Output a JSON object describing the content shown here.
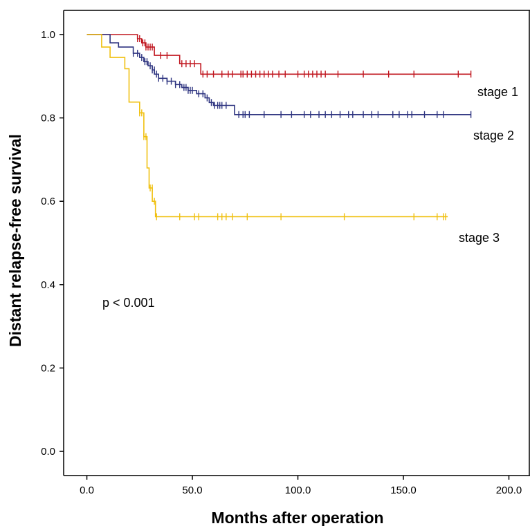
{
  "chart_data": {
    "type": "line",
    "subtype": "kaplan-meier-step",
    "title": "",
    "xlabel": "Months after operation",
    "ylabel": "Distant relapse-free survival",
    "xlim": [
      -11,
      210
    ],
    "ylim": [
      -0.058,
      1.058
    ],
    "xticks": [
      0,
      50,
      100,
      150,
      200
    ],
    "xtick_labels": [
      "0.0",
      "50.0",
      "100.0",
      "150.0",
      "200.0"
    ],
    "yticks": [
      0,
      0.2,
      0.4,
      0.6,
      0.8,
      1.0
    ],
    "ytick_labels": [
      "0.0",
      "0.2",
      "0.4",
      "0.6",
      "0.8",
      "1.0"
    ],
    "grid": false,
    "annotation": "p < 0.001",
    "series": [
      {
        "name": "stage 1",
        "color": "#c0161f",
        "steps": [
          [
            0,
            1.0
          ],
          [
            24,
            0.99
          ],
          [
            26,
            0.98
          ],
          [
            28,
            0.97
          ],
          [
            32,
            0.95
          ],
          [
            44,
            0.93
          ],
          [
            54,
            0.905
          ],
          [
            182,
            0.905
          ]
        ],
        "censored": [
          [
            24,
            0.99
          ],
          [
            25,
            0.99
          ],
          [
            26.5,
            0.98
          ],
          [
            27.5,
            0.98
          ],
          [
            28,
            0.97
          ],
          [
            29,
            0.97
          ],
          [
            30,
            0.97
          ],
          [
            31,
            0.97
          ],
          [
            35,
            0.95
          ],
          [
            38,
            0.95
          ],
          [
            45,
            0.93
          ],
          [
            47,
            0.93
          ],
          [
            49,
            0.93
          ],
          [
            51,
            0.93
          ],
          [
            55,
            0.905
          ],
          [
            57,
            0.905
          ],
          [
            60,
            0.905
          ],
          [
            64,
            0.905
          ],
          [
            67,
            0.905
          ],
          [
            69,
            0.905
          ],
          [
            73,
            0.905
          ],
          [
            74,
            0.905
          ],
          [
            76,
            0.905
          ],
          [
            78,
            0.905
          ],
          [
            80,
            0.905
          ],
          [
            82,
            0.905
          ],
          [
            84,
            0.905
          ],
          [
            86,
            0.905
          ],
          [
            88,
            0.905
          ],
          [
            91,
            0.905
          ],
          [
            94,
            0.905
          ],
          [
            100,
            0.905
          ],
          [
            103,
            0.905
          ],
          [
            105,
            0.905
          ],
          [
            107,
            0.905
          ],
          [
            109,
            0.905
          ],
          [
            111,
            0.905
          ],
          [
            113,
            0.905
          ],
          [
            119,
            0.905
          ],
          [
            131,
            0.905
          ],
          [
            143,
            0.905
          ],
          [
            155,
            0.905
          ],
          [
            176,
            0.905
          ],
          [
            182,
            0.905
          ]
        ]
      },
      {
        "name": "stage 2",
        "color": "#2e3480",
        "steps": [
          [
            0,
            1.0
          ],
          [
            11,
            0.98
          ],
          [
            15,
            0.97
          ],
          [
            22,
            0.955
          ],
          [
            25,
            0.945
          ],
          [
            27,
            0.935
          ],
          [
            29,
            0.925
          ],
          [
            31,
            0.915
          ],
          [
            32,
            0.905
          ],
          [
            34,
            0.895
          ],
          [
            38,
            0.888
          ],
          [
            42,
            0.88
          ],
          [
            45,
            0.873
          ],
          [
            48,
            0.866
          ],
          [
            52,
            0.858
          ],
          [
            56,
            0.848
          ],
          [
            58,
            0.837
          ],
          [
            60,
            0.83
          ],
          [
            70,
            0.808
          ],
          [
            182,
            0.808
          ]
        ],
        "censored": [
          [
            22,
            0.955
          ],
          [
            24,
            0.955
          ],
          [
            26,
            0.945
          ],
          [
            27.5,
            0.935
          ],
          [
            28.5,
            0.935
          ],
          [
            30,
            0.925
          ],
          [
            31,
            0.915
          ],
          [
            32,
            0.915
          ],
          [
            33,
            0.905
          ],
          [
            34,
            0.895
          ],
          [
            36,
            0.895
          ],
          [
            38,
            0.888
          ],
          [
            40,
            0.888
          ],
          [
            42,
            0.88
          ],
          [
            44,
            0.88
          ],
          [
            46,
            0.873
          ],
          [
            47,
            0.873
          ],
          [
            48,
            0.866
          ],
          [
            49,
            0.866
          ],
          [
            50,
            0.866
          ],
          [
            53,
            0.858
          ],
          [
            55,
            0.858
          ],
          [
            57,
            0.848
          ],
          [
            59,
            0.837
          ],
          [
            60.5,
            0.83
          ],
          [
            62,
            0.83
          ],
          [
            63,
            0.83
          ],
          [
            64,
            0.83
          ],
          [
            66,
            0.83
          ],
          [
            72,
            0.808
          ],
          [
            74,
            0.808
          ],
          [
            75,
            0.808
          ],
          [
            77,
            0.808
          ],
          [
            84,
            0.808
          ],
          [
            92,
            0.808
          ],
          [
            97,
            0.808
          ],
          [
            103,
            0.808
          ],
          [
            106,
            0.808
          ],
          [
            110,
            0.808
          ],
          [
            113,
            0.808
          ],
          [
            116,
            0.808
          ],
          [
            120,
            0.808
          ],
          [
            124,
            0.808
          ],
          [
            126,
            0.808
          ],
          [
            131,
            0.808
          ],
          [
            135,
            0.808
          ],
          [
            138,
            0.808
          ],
          [
            145,
            0.808
          ],
          [
            148,
            0.808
          ],
          [
            152,
            0.808
          ],
          [
            154,
            0.808
          ],
          [
            160,
            0.808
          ],
          [
            166,
            0.808
          ],
          [
            169,
            0.808
          ],
          [
            182,
            0.808
          ]
        ]
      },
      {
        "name": "stage 3",
        "color": "#f0c010",
        "steps": [
          [
            0,
            1.0
          ],
          [
            7,
            0.97
          ],
          [
            11,
            0.945
          ],
          [
            18,
            0.918
          ],
          [
            20,
            0.838
          ],
          [
            25,
            0.812
          ],
          [
            27,
            0.755
          ],
          [
            28.5,
            0.68
          ],
          [
            29.5,
            0.632
          ],
          [
            31,
            0.6
          ],
          [
            32.5,
            0.563
          ],
          [
            171,
            0.563
          ]
        ],
        "censored": [
          [
            25,
            0.812
          ],
          [
            26,
            0.812
          ],
          [
            27,
            0.755
          ],
          [
            28,
            0.755
          ],
          [
            30,
            0.632
          ],
          [
            31,
            0.632
          ],
          [
            32,
            0.6
          ],
          [
            33,
            0.563
          ],
          [
            44,
            0.563
          ],
          [
            51,
            0.563
          ],
          [
            53,
            0.563
          ],
          [
            62,
            0.563
          ],
          [
            64,
            0.563
          ],
          [
            66,
            0.563
          ],
          [
            69,
            0.563
          ],
          [
            76,
            0.563
          ],
          [
            92,
            0.563
          ],
          [
            122,
            0.563
          ],
          [
            155,
            0.563
          ],
          [
            166,
            0.563
          ],
          [
            169,
            0.563
          ],
          [
            170,
            0.563
          ]
        ]
      }
    ]
  }
}
